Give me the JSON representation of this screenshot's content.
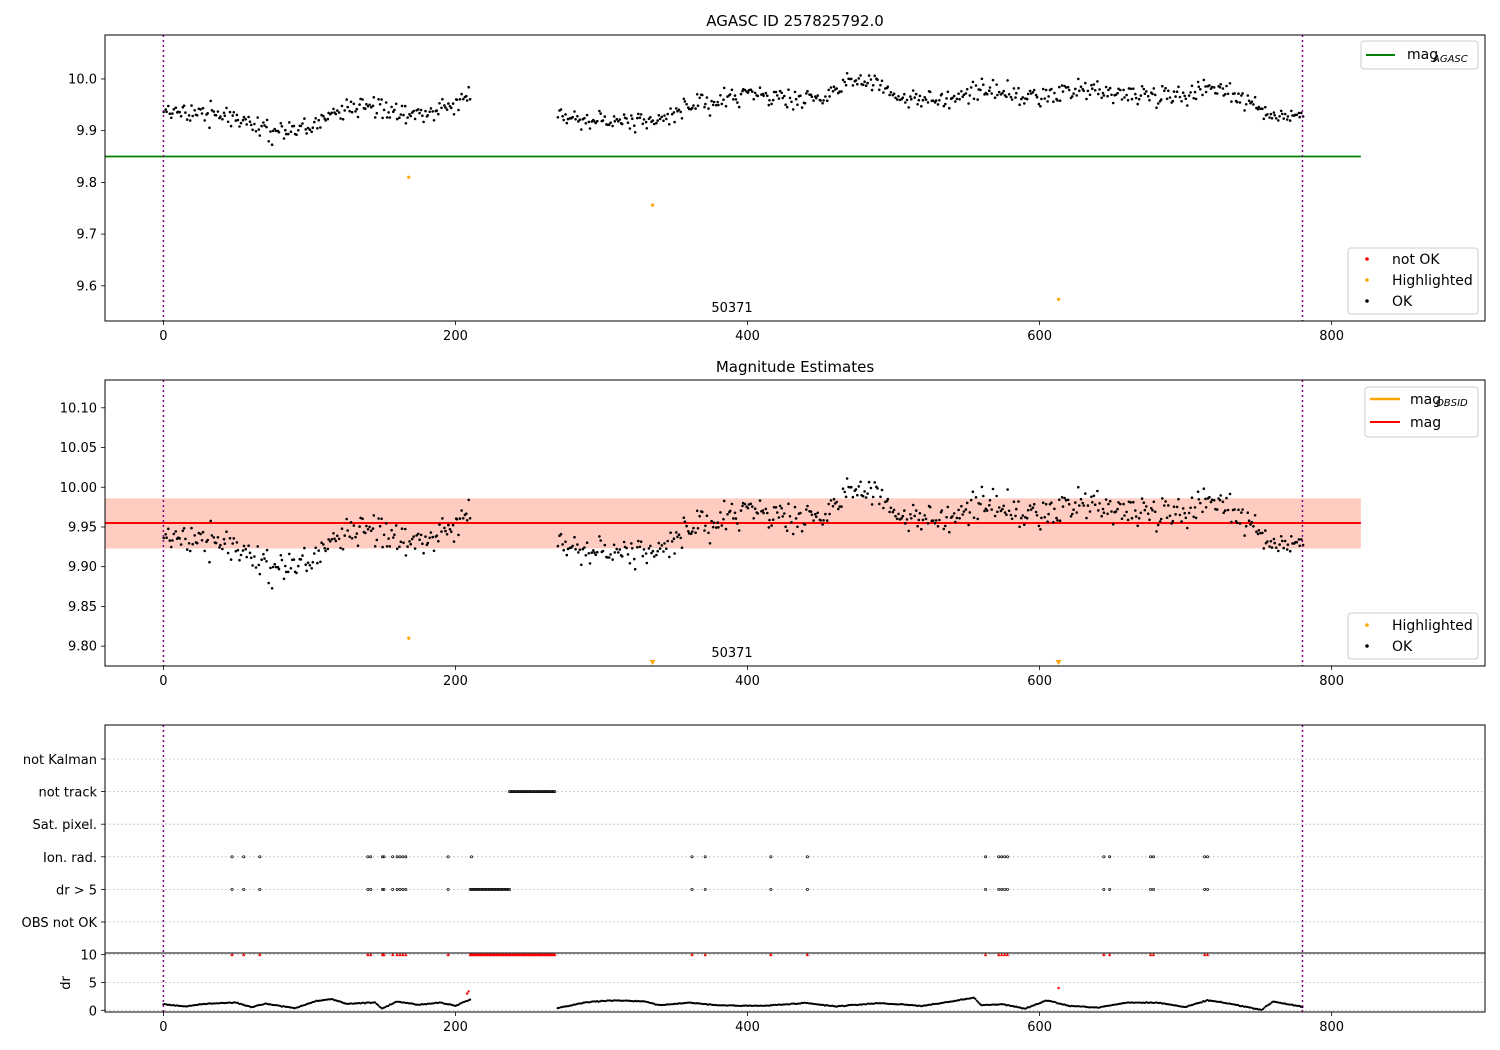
{
  "chart_data": [
    {
      "type": "scatter",
      "title": "AGASC ID 257825792.0",
      "xlim": [
        -40,
        905
      ],
      "ylim": [
        9.532,
        10.085
      ],
      "xticks": [
        0,
        200,
        400,
        600,
        800
      ],
      "yticks": [
        9.6,
        9.7,
        9.8,
        9.9,
        10.0
      ],
      "ytick_labels": [
        "9.6",
        "9.7",
        "9.8",
        "9.9",
        "10.0"
      ],
      "vlines": [
        0,
        780
      ],
      "annotation": {
        "text": "50371",
        "x": 390,
        "y": 9.574
      },
      "hline": {
        "name": "mag_AGASC",
        "y": 9.85,
        "x_range": [
          -40,
          820
        ],
        "color": "#008000"
      },
      "series": [
        {
          "name": "not OK",
          "color": "#ff0000",
          "points": []
        },
        {
          "name": "Highlighted",
          "color": "#ffa500",
          "points": [
            [
              168,
              9.81
            ],
            [
              335,
              9.756
            ],
            [
              613,
              9.574
            ]
          ]
        },
        {
          "name": "OK",
          "color": "#000000",
          "segments": [
            {
              "x_range": [
                0,
                210
              ],
              "keypoints": [
                [
                  0,
                  9.93
                ],
                [
                  20,
                  9.94
                ],
                [
                  40,
                  9.93
                ],
                [
                  55,
                  9.92
                ],
                [
                  70,
                  9.9
                ],
                [
                  85,
                  9.9
                ],
                [
                  100,
                  9.91
                ],
                [
                  115,
                  9.93
                ],
                [
                  135,
                  9.95
                ],
                [
                  150,
                  9.94
                ],
                [
                  170,
                  9.93
                ],
                [
                  190,
                  9.94
                ],
                [
                  200,
                  9.96
                ],
                [
                  210,
                  9.97
                ]
              ]
            },
            {
              "x_range": [
                270,
                780
              ],
              "keypoints": [
                [
                  270,
                  9.93
                ],
                [
                  300,
                  9.92
                ],
                [
                  330,
                  9.92
                ],
                [
                  360,
                  9.94
                ],
                [
                  380,
                  9.96
                ],
                [
                  400,
                  9.97
                ],
                [
                  430,
                  9.96
                ],
                [
                  450,
                  9.96
                ],
                [
                  470,
                  10.0
                ],
                [
                  490,
                  9.99
                ],
                [
                  510,
                  9.96
                ],
                [
                  540,
                  9.96
                ],
                [
                  560,
                  9.98
                ],
                [
                  580,
                  9.97
                ],
                [
                  600,
                  9.96
                ],
                [
                  630,
                  9.98
                ],
                [
                  660,
                  9.97
                ],
                [
                  700,
                  9.97
                ],
                [
                  720,
                  9.99
                ],
                [
                  740,
                  9.96
                ],
                [
                  760,
                  9.93
                ],
                [
                  780,
                  9.93
                ]
              ]
            }
          ]
        }
      ],
      "legends": [
        {
          "position": "upper-right",
          "entries": [
            {
              "kind": "line",
              "label": "mag",
              "sub": "AGASC",
              "color": "#008000"
            }
          ]
        },
        {
          "position": "lower-right",
          "entries": [
            {
              "kind": "marker",
              "label": "not OK",
              "color": "#ff0000"
            },
            {
              "kind": "marker",
              "label": "Highlighted",
              "color": "#ffa500"
            },
            {
              "kind": "marker",
              "label": "OK",
              "color": "#000000"
            }
          ]
        }
      ]
    },
    {
      "type": "scatter",
      "title": "Magnitude Estimates",
      "xlim": [
        -40,
        905
      ],
      "ylim": [
        9.775,
        10.135
      ],
      "xticks": [
        0,
        200,
        400,
        600,
        800
      ],
      "yticks": [
        9.8,
        9.85,
        9.9,
        9.95,
        10.0,
        10.05,
        10.1
      ],
      "ytick_labels": [
        "9.80",
        "9.85",
        "9.90",
        "9.95",
        "10.00",
        "10.05",
        "10.10"
      ],
      "vlines": [
        0,
        780
      ],
      "annotation": {
        "text": "50371",
        "x": 390,
        "y": 9.78
      },
      "bands": [
        {
          "x_range": [
            -40,
            820
          ],
          "y_range": [
            9.923,
            9.986
          ],
          "color": "#ffc0cb",
          "opacity": 0.45
        },
        {
          "x_range": [
            -40,
            820
          ],
          "y_range": [
            9.923,
            9.986
          ],
          "color": "#ffa07a",
          "opacity": 0.35
        }
      ],
      "hlines": [
        {
          "name": "mag",
          "y": 9.955,
          "x_range": [
            -40,
            820
          ],
          "color": "#ff0000"
        }
      ],
      "series": [
        {
          "name": "Highlighted",
          "color": "#ffa500",
          "points": [
            [
              168,
              9.81
            ]
          ],
          "clipped_markers": [
            335,
            613
          ]
        },
        {
          "name": "OK",
          "color": "#000000",
          "segments": [
            {
              "x_range": [
                0,
                210
              ],
              "keypoints": [
                [
                  0,
                  9.93
                ],
                [
                  20,
                  9.94
                ],
                [
                  40,
                  9.93
                ],
                [
                  55,
                  9.92
                ],
                [
                  70,
                  9.9
                ],
                [
                  85,
                  9.9
                ],
                [
                  100,
                  9.91
                ],
                [
                  115,
                  9.93
                ],
                [
                  135,
                  9.95
                ],
                [
                  150,
                  9.94
                ],
                [
                  170,
                  9.93
                ],
                [
                  190,
                  9.94
                ],
                [
                  200,
                  9.96
                ],
                [
                  210,
                  9.97
                ]
              ]
            },
            {
              "x_range": [
                270,
                780
              ],
              "keypoints": [
                [
                  270,
                  9.93
                ],
                [
                  300,
                  9.92
                ],
                [
                  330,
                  9.92
                ],
                [
                  360,
                  9.94
                ],
                [
                  380,
                  9.96
                ],
                [
                  400,
                  9.97
                ],
                [
                  430,
                  9.96
                ],
                [
                  450,
                  9.96
                ],
                [
                  470,
                  10.0
                ],
                [
                  490,
                  9.99
                ],
                [
                  510,
                  9.96
                ],
                [
                  540,
                  9.96
                ],
                [
                  560,
                  9.98
                ],
                [
                  580,
                  9.97
                ],
                [
                  600,
                  9.96
                ],
                [
                  630,
                  9.98
                ],
                [
                  660,
                  9.97
                ],
                [
                  700,
                  9.97
                ],
                [
                  720,
                  9.99
                ],
                [
                  740,
                  9.96
                ],
                [
                  760,
                  9.93
                ],
                [
                  780,
                  9.93
                ]
              ]
            }
          ]
        }
      ],
      "legends": [
        {
          "position": "upper-right",
          "entries": [
            {
              "kind": "line",
              "label": "mag",
              "sub": "OBSID",
              "color": "#ffa500"
            },
            {
              "kind": "line",
              "label": "mag",
              "sub": "",
              "color": "#ff0000"
            }
          ]
        },
        {
          "position": "lower-right",
          "entries": [
            {
              "kind": "marker",
              "label": "Highlighted",
              "color": "#ffa500"
            },
            {
              "kind": "marker",
              "label": "OK",
              "color": "#000000"
            }
          ]
        }
      ]
    },
    {
      "type": "scatter",
      "title": "",
      "xlim": [
        -40,
        905
      ],
      "xticks": [
        0,
        200,
        400,
        600,
        800
      ],
      "vlines": [
        0,
        780
      ],
      "flag_rows": [
        "not Kalman",
        "not track",
        "Sat. pixel.",
        "Ion. rad.",
        "dr > 5",
        "OBS not OK"
      ],
      "flags": {
        "not Kalman": [],
        "not track": [
          [
            237,
            268
          ]
        ],
        "Sat. pixel.": [],
        "Ion. rad.": [
          47,
          55,
          66,
          140,
          142,
          150,
          151,
          157,
          160,
          162,
          164,
          166,
          195,
          211,
          362,
          371,
          416,
          441,
          563,
          572,
          574,
          576,
          578,
          644,
          648,
          676,
          678,
          713,
          715
        ],
        "dr > 5": [
          47,
          55,
          66,
          140,
          142,
          150,
          151,
          157,
          160,
          162,
          164,
          166,
          195,
          [
            210,
            237
          ],
          362,
          371,
          416,
          441,
          563,
          572,
          574,
          576,
          578,
          644,
          648,
          676,
          678,
          713,
          715
        ],
        "OBS not OK": []
      },
      "dr_panel": {
        "ylabel": "dr",
        "ylim": [
          -0.3,
          10.3
        ],
        "yticks": [
          0,
          5,
          10
        ],
        "red_points": [
          47,
          55,
          66,
          140,
          142,
          150,
          151,
          157,
          160,
          162,
          164,
          166,
          195,
          [
            210,
            268
          ],
          362,
          371,
          416,
          441,
          563,
          572,
          574,
          576,
          578,
          644,
          648,
          676,
          678,
          713,
          715
        ],
        "red_value": 10,
        "extra_red": [
          [
            208,
            3.0
          ],
          [
            209,
            3.4
          ],
          [
            613,
            4.0
          ]
        ],
        "dr_segments": [
          {
            "x_range": [
              0,
              210
            ],
            "keypoints": [
              [
                0,
                1.1
              ],
              [
                15,
                0.7
              ],
              [
                30,
                1.2
              ],
              [
                50,
                1.4
              ],
              [
                60,
                0.6
              ],
              [
                70,
                1.2
              ],
              [
                90,
                0.4
              ],
              [
                105,
                1.7
              ],
              [
                115,
                2.0
              ],
              [
                125,
                1.2
              ],
              [
                145,
                1.4
              ],
              [
                150,
                0.3
              ],
              [
                160,
                1.6
              ],
              [
                175,
                1.0
              ],
              [
                190,
                1.4
              ],
              [
                200,
                0.8
              ],
              [
                210,
                2.0
              ]
            ]
          },
          {
            "x_range": [
              270,
              780
            ],
            "keypoints": [
              [
                270,
                0.4
              ],
              [
                290,
                1.5
              ],
              [
                310,
                1.8
              ],
              [
                330,
                1.6
              ],
              [
                340,
                0.9
              ],
              [
                360,
                1.4
              ],
              [
                380,
                0.9
              ],
              [
                410,
                0.8
              ],
              [
                440,
                1.3
              ],
              [
                460,
                0.7
              ],
              [
                490,
                1.3
              ],
              [
                520,
                0.8
              ],
              [
                540,
                1.6
              ],
              [
                555,
                2.3
              ],
              [
                560,
                0.9
              ],
              [
                575,
                1.1
              ],
              [
                590,
                0.3
              ],
              [
                605,
                1.8
              ],
              [
                620,
                0.8
              ],
              [
                640,
                0.5
              ],
              [
                660,
                1.4
              ],
              [
                680,
                1.4
              ],
              [
                700,
                0.6
              ],
              [
                715,
                1.8
              ],
              [
                730,
                1.2
              ],
              [
                752,
                0.1
              ],
              [
                760,
                1.6
              ],
              [
                780,
                0.6
              ]
            ]
          }
        ]
      }
    }
  ]
}
